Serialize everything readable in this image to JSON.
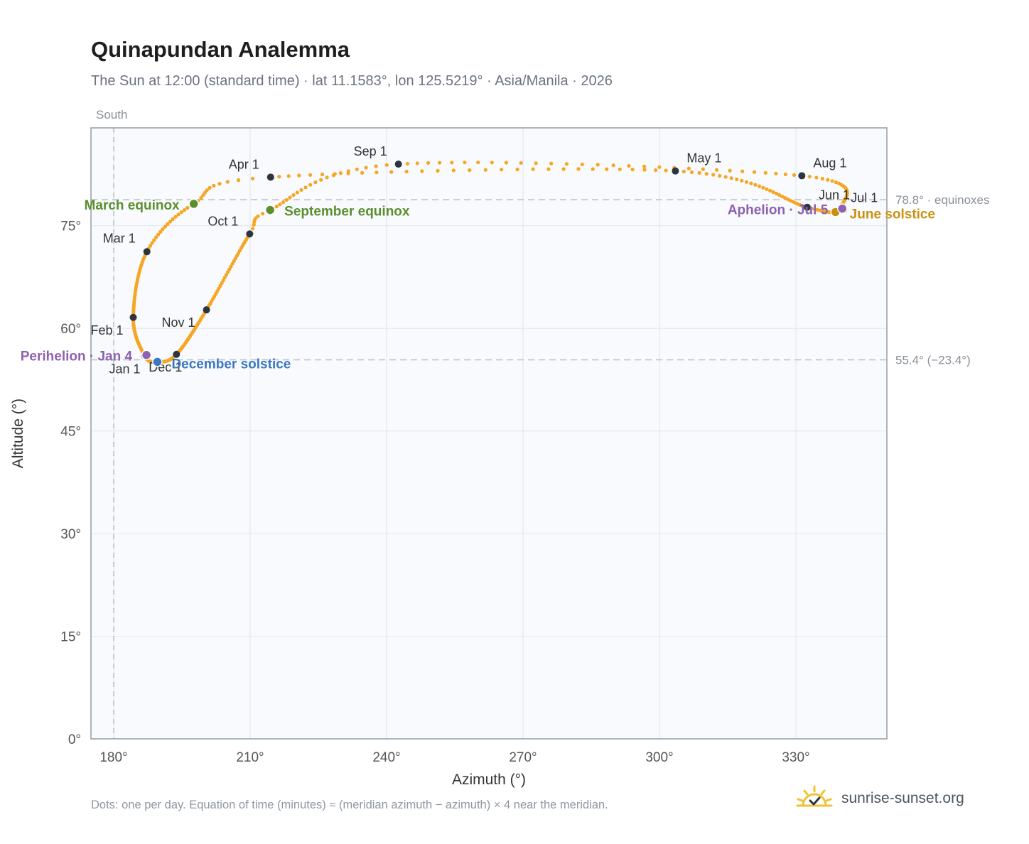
{
  "header": {
    "title": "Quinapundan Analemma",
    "subtitle": "The Sun at 12:00 (standard time) · lat 11.1583°, lon 125.5219° · Asia/Manila · 2026"
  },
  "footer": {
    "note": "Dots: one per day. Equation of time (minutes) ≈ (meridian azimuth − azimuth) × 4 near the meridian.",
    "brand": "sunrise-sunset.org"
  },
  "colors": {
    "curve": "#f5a623",
    "month_marker": "#2d3440",
    "equinox": "#5a8f2e",
    "december_solstice": "#3a78c2",
    "june_solstice": "#c9900e",
    "apsis": "#8d62b0",
    "plot_bg": "#f8fafd",
    "grid": "#e3e8ee",
    "reference_line": "#b8bfc8"
  },
  "chart_data": {
    "type": "scatter",
    "title": "Quinapundan Analemma",
    "xlabel": "Azimuth (°)",
    "ylabel": "Altitude (°)",
    "xlim": [
      175,
      350
    ],
    "ylim": [
      0,
      89.3
    ],
    "x_ticks": [
      180,
      210,
      240,
      270,
      300,
      330
    ],
    "x_tick_labels": [
      "180°",
      "210°",
      "240°",
      "270°",
      "300°",
      "330°"
    ],
    "y_ticks": [
      0,
      15,
      30,
      45,
      60,
      75
    ],
    "y_tick_labels": [
      "0°",
      "15°",
      "30°",
      "45°",
      "60°",
      "75°"
    ],
    "grid": true,
    "reference_lines": [
      {
        "axis": "x",
        "value": 180,
        "label": "South"
      },
      {
        "axis": "y",
        "value": 78.8,
        "label": "78.8° · equinoxes"
      },
      {
        "axis": "y",
        "value": 55.4,
        "label": "55.4° (−23.4°)"
      }
    ],
    "series": [
      {
        "points": [
          {
            "date": "Jan 1",
            "az": 186.8,
            "alt": 56.0
          },
          {
            "date": "Feb 1",
            "az": 184.3,
            "alt": 61.6
          },
          {
            "date": "Mar 1",
            "az": 187.3,
            "alt": 71.2
          },
          {
            "date": "Mar 20",
            "az": 197.6,
            "alt": 78.2
          },
          {
            "date": "Apr 1",
            "az": 214.5,
            "alt": 82.1
          },
          {
            "date": "May 1",
            "az": 303.5,
            "alt": 83.0
          },
          {
            "date": "Jun 1",
            "az": 332.5,
            "alt": 77.7
          },
          {
            "date": "Jun 21",
            "az": 338.7,
            "alt": 77.0
          },
          {
            "date": "Jul 1",
            "az": 340.2,
            "alt": 77.5
          },
          {
            "date": "Jul 5",
            "az": 340.2,
            "alt": 77.5
          },
          {
            "date": "Aug 1",
            "az": 331.3,
            "alt": 82.3
          },
          {
            "date": "Sep 1",
            "az": 242.6,
            "alt": 84.0
          },
          {
            "date": "Sep 23",
            "az": 214.4,
            "alt": 77.3
          },
          {
            "date": "Oct 1",
            "az": 209.9,
            "alt": 73.8
          },
          {
            "date": "Nov 1",
            "az": 200.4,
            "alt": 62.7
          },
          {
            "date": "Dec 1",
            "az": 193.8,
            "alt": 56.2
          },
          {
            "date": "Dec 21",
            "az": 189.6,
            "alt": 55.1
          }
        ]
      }
    ],
    "month_markers": [
      {
        "label": "Jan 1",
        "az": 186.8,
        "alt": 56.0
      },
      {
        "label": "Feb 1",
        "az": 184.3,
        "alt": 61.6
      },
      {
        "label": "Mar 1",
        "az": 187.3,
        "alt": 71.2
      },
      {
        "label": "Apr 1",
        "az": 214.5,
        "alt": 82.1
      },
      {
        "label": "May 1",
        "az": 303.5,
        "alt": 83.0
      },
      {
        "label": "Jun 1",
        "az": 332.5,
        "alt": 77.7
      },
      {
        "label": "Jul 1",
        "az": 340.2,
        "alt": 77.5
      },
      {
        "label": "Aug 1",
        "az": 331.3,
        "alt": 82.3
      },
      {
        "label": "Sep 1",
        "az": 242.6,
        "alt": 84.0
      },
      {
        "label": "Oct 1",
        "az": 209.9,
        "alt": 73.8
      },
      {
        "label": "Nov 1",
        "az": 200.4,
        "alt": 62.7
      },
      {
        "label": "Dec 1",
        "az": 193.8,
        "alt": 56.2
      }
    ],
    "events": [
      {
        "label": "March equinox",
        "az": 197.6,
        "alt": 78.2,
        "color_key": "equinox"
      },
      {
        "label": "September equinox",
        "az": 214.4,
        "alt": 77.3,
        "color_key": "equinox"
      },
      {
        "label": "December solstice",
        "az": 189.6,
        "alt": 55.1,
        "color_key": "december_solstice"
      },
      {
        "label": "June solstice",
        "az": 338.7,
        "alt": 77.0,
        "color_key": "june_solstice"
      },
      {
        "label": "Perihelion · Jan 4",
        "az": 187.2,
        "alt": 56.1,
        "color_key": "apsis"
      },
      {
        "label": "Aphelion · Jul 5",
        "az": 340.2,
        "alt": 77.5,
        "color_key": "apsis"
      }
    ]
  }
}
